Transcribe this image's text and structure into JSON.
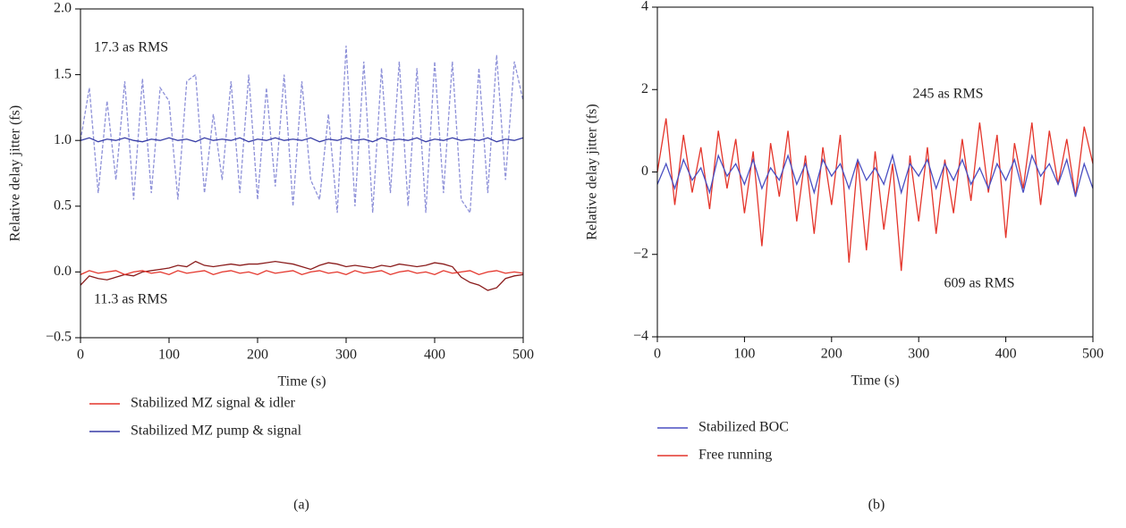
{
  "chart_data": [
    {
      "type": "line",
      "label": "(a)",
      "xlabel": "Time (s)",
      "ylabel": "Relative delay jitter (fs)",
      "x": [
        0,
        10,
        20,
        30,
        40,
        50,
        60,
        70,
        80,
        90,
        100,
        110,
        120,
        130,
        140,
        150,
        160,
        170,
        180,
        190,
        200,
        210,
        220,
        230,
        240,
        250,
        260,
        270,
        280,
        290,
        300,
        310,
        320,
        330,
        340,
        350,
        360,
        370,
        380,
        390,
        400,
        410,
        420,
        430,
        440,
        450,
        460,
        470,
        480,
        490,
        500
      ],
      "xlim": [
        0,
        500
      ],
      "xticks": [
        0,
        100,
        200,
        300,
        400,
        500
      ],
      "ylim": [
        -0.5,
        2.0
      ],
      "yticks": [
        {
          "value": -0.5,
          "label": "−0.5"
        },
        {
          "value": 0,
          "label": "0.0"
        },
        0.5,
        {
          "value": 1,
          "label": "1.0"
        },
        1.5,
        {
          "value": 2,
          "label": "2.0"
        }
      ],
      "legend": "bottom",
      "series": [
        {
          "color": "#8d90d8",
          "dashed": true,
          "values": [
            1.0,
            1.4,
            0.6,
            1.3,
            0.7,
            1.45,
            0.55,
            1.47,
            0.6,
            1.4,
            1.3,
            0.55,
            1.45,
            1.5,
            0.6,
            1.2,
            0.7,
            1.45,
            0.6,
            1.5,
            0.55,
            1.4,
            0.65,
            1.5,
            0.5,
            1.45,
            0.7,
            0.55,
            1.2,
            0.45,
            1.72,
            0.5,
            1.6,
            0.45,
            1.55,
            0.6,
            1.6,
            0.5,
            1.55,
            0.45,
            1.6,
            0.6,
            1.6,
            0.55,
            0.45,
            1.55,
            0.6,
            1.65,
            0.7,
            1.6,
            1.3
          ]
        },
        {
          "name": "Stabilized MZ pump & signal",
          "color": "#363ca6",
          "values": [
            1.0,
            1.02,
            0.99,
            1.01,
            1.0,
            1.02,
            1.0,
            0.99,
            1.01,
            1.0,
            1.02,
            1.0,
            1.01,
            0.99,
            1.02,
            1.0,
            1.01,
            1.0,
            1.02,
            0.99,
            1.01,
            1.0,
            1.02,
            1.0,
            1.01,
            1.0,
            1.02,
            0.99,
            1.01,
            1.0,
            1.02,
            1.0,
            1.01,
            0.99,
            1.02,
            1.0,
            1.01,
            1.0,
            1.02,
            0.99,
            1.01,
            1.0,
            1.02,
            1.0,
            1.01,
            1.0,
            1.02,
            0.99,
            1.01,
            1.0,
            1.02
          ]
        },
        {
          "color": "#8a1c1c",
          "values": [
            -0.1,
            -0.03,
            -0.05,
            -0.06,
            -0.04,
            -0.02,
            -0.03,
            0.0,
            0.01,
            0.02,
            0.03,
            0.05,
            0.04,
            0.08,
            0.05,
            0.04,
            0.05,
            0.06,
            0.05,
            0.06,
            0.06,
            0.07,
            0.08,
            0.07,
            0.06,
            0.04,
            0.02,
            0.05,
            0.07,
            0.06,
            0.04,
            0.05,
            0.04,
            0.03,
            0.05,
            0.04,
            0.06,
            0.05,
            0.04,
            0.05,
            0.07,
            0.06,
            0.04,
            -0.04,
            -0.08,
            -0.1,
            -0.14,
            -0.12,
            -0.05,
            -0.03,
            -0.02
          ]
        },
        {
          "name": "Stabilized MZ signal & idler",
          "color": "#e4352b",
          "values": [
            -0.02,
            0.01,
            -0.01,
            0.0,
            0.01,
            -0.02,
            0.0,
            0.01,
            -0.01,
            0.0,
            -0.02,
            0.01,
            -0.01,
            0.0,
            0.01,
            -0.02,
            0.0,
            0.01,
            -0.01,
            0.0,
            -0.02,
            0.01,
            -0.01,
            0.0,
            0.01,
            -0.02,
            0.0,
            0.01,
            -0.01,
            0.0,
            -0.02,
            0.01,
            -0.01,
            0.0,
            0.01,
            -0.02,
            0.0,
            0.01,
            -0.01,
            0.0,
            -0.02,
            0.01,
            -0.01,
            0.0,
            0.01,
            -0.02,
            0.0,
            0.01,
            -0.01,
            0.0,
            -0.01
          ]
        }
      ],
      "legend_order": [
        3,
        1
      ],
      "annotations": [
        {
          "text": "17.3 as RMS",
          "color": "#5a5fc4"
        },
        {
          "text": "11.3 as RMS",
          "color": "#e4352b"
        }
      ]
    },
    {
      "type": "line",
      "label": "(b)",
      "xlabel": "Time (s)",
      "ylabel": "Relative delay jitter (fs)",
      "x": [
        0,
        10,
        20,
        30,
        40,
        50,
        60,
        70,
        80,
        90,
        100,
        110,
        120,
        130,
        140,
        150,
        160,
        170,
        180,
        190,
        200,
        210,
        220,
        230,
        240,
        250,
        260,
        270,
        280,
        290,
        300,
        310,
        320,
        330,
        340,
        350,
        360,
        370,
        380,
        390,
        400,
        410,
        420,
        430,
        440,
        450,
        460,
        470,
        480,
        490,
        500
      ],
      "xlim": [
        0,
        500
      ],
      "xticks": [
        0,
        100,
        200,
        300,
        400,
        500
      ],
      "ylim": [
        -4,
        4
      ],
      "yticks": [
        {
          "value": -4,
          "label": "−4"
        },
        {
          "value": -2,
          "label": "−2"
        },
        0,
        2,
        4
      ],
      "legend": "bottom",
      "series": [
        {
          "name": "Free running",
          "color": "#e4352b",
          "values": [
            0.0,
            1.3,
            -0.8,
            0.9,
            -0.5,
            0.6,
            -0.9,
            1.0,
            -0.4,
            0.8,
            -1.0,
            0.5,
            -1.8,
            0.7,
            -0.6,
            1.0,
            -1.2,
            0.4,
            -1.5,
            0.6,
            -0.8,
            0.9,
            -2.2,
            0.3,
            -1.9,
            0.5,
            -1.4,
            0.2,
            -2.4,
            0.4,
            -1.2,
            0.6,
            -1.5,
            0.3,
            -1.0,
            0.8,
            -0.7,
            1.2,
            -0.5,
            0.9,
            -1.6,
            0.7,
            -0.4,
            1.2,
            -0.8,
            1.0,
            -0.3,
            0.8,
            -0.6,
            1.1,
            0.2
          ]
        },
        {
          "name": "Stabilized BOC",
          "color": "#4a4fc2",
          "values": [
            -0.3,
            0.2,
            -0.4,
            0.3,
            -0.2,
            0.1,
            -0.5,
            0.4,
            -0.1,
            0.2,
            -0.3,
            0.3,
            -0.4,
            0.1,
            -0.2,
            0.4,
            -0.3,
            0.2,
            -0.5,
            0.3,
            -0.1,
            0.2,
            -0.4,
            0.3,
            -0.2,
            0.1,
            -0.3,
            0.4,
            -0.5,
            0.2,
            -0.1,
            0.3,
            -0.4,
            0.2,
            -0.2,
            0.3,
            -0.3,
            0.1,
            -0.4,
            0.2,
            -0.2,
            0.3,
            -0.5,
            0.4,
            -0.1,
            0.2,
            -0.3,
            0.3,
            -0.6,
            0.2,
            -0.4
          ]
        }
      ],
      "legend_order": [
        1,
        0
      ],
      "annotations": [
        {
          "text": "245 as RMS",
          "color": "#4a4fc2"
        },
        {
          "text": "609 as RMS",
          "color": "#e4352b"
        }
      ]
    }
  ]
}
